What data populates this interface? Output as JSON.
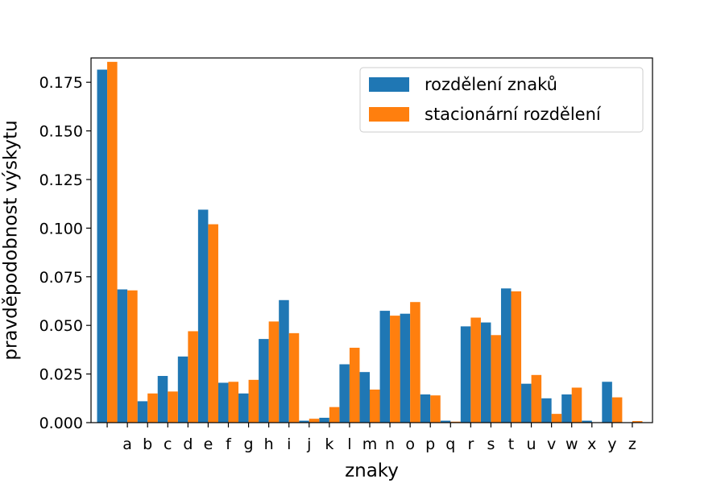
{
  "chart_data": {
    "type": "bar",
    "title": "",
    "xlabel": "znaky",
    "ylabel": "pravděpodobnost výskytu",
    "ylim": [
      0,
      0.1875
    ],
    "yticks": [
      0.0,
      0.025,
      0.05,
      0.075,
      0.1,
      0.125,
      0.15,
      0.175
    ],
    "ytick_labels": [
      "0.000",
      "0.025",
      "0.050",
      "0.075",
      "0.100",
      "0.125",
      "0.150",
      "0.175"
    ],
    "grid": false,
    "legend_position": "top-right",
    "categories": [
      " ",
      "a",
      "b",
      "c",
      "d",
      "e",
      "f",
      "g",
      "h",
      "i",
      "j",
      "k",
      "l",
      "m",
      "n",
      "o",
      "p",
      "q",
      "r",
      "s",
      "t",
      "u",
      "v",
      "w",
      "x",
      "y",
      "z"
    ],
    "series": [
      {
        "name": "rozdělení znaků",
        "color": "#1f77b4",
        "values": [
          0.1815,
          0.0685,
          0.011,
          0.024,
          0.034,
          0.1095,
          0.0205,
          0.015,
          0.043,
          0.063,
          0.001,
          0.0025,
          0.03,
          0.026,
          0.0575,
          0.056,
          0.0145,
          0.001,
          0.0495,
          0.0515,
          0.069,
          0.02,
          0.0125,
          0.0145,
          0.001,
          0.021,
          0.0
        ]
      },
      {
        "name": "stacionární rozdělení",
        "color": "#ff7f0e",
        "values": [
          0.1855,
          0.068,
          0.015,
          0.016,
          0.047,
          0.102,
          0.021,
          0.022,
          0.052,
          0.046,
          0.002,
          0.008,
          0.0385,
          0.017,
          0.055,
          0.062,
          0.014,
          0.0005,
          0.054,
          0.045,
          0.0675,
          0.0245,
          0.0045,
          0.018,
          0.0,
          0.013,
          0.0008
        ]
      }
    ]
  }
}
